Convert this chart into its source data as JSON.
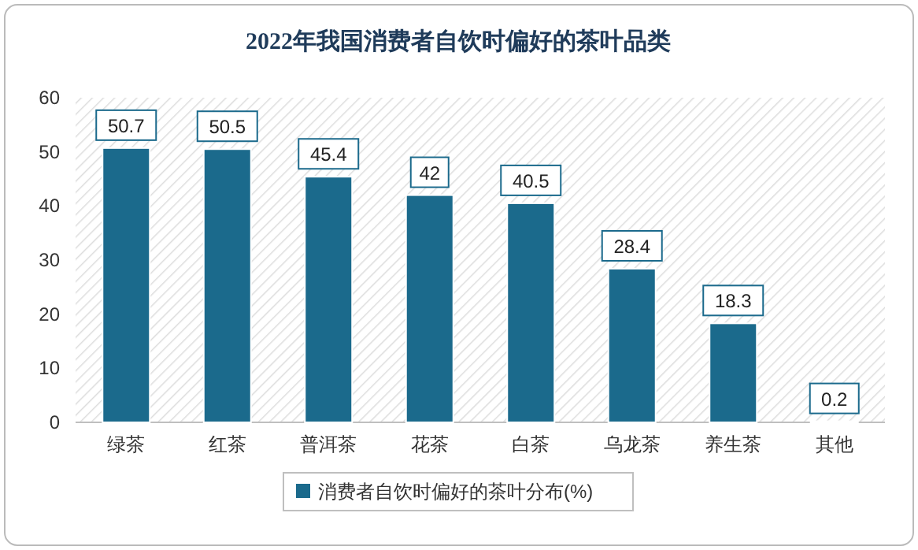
{
  "chart_data": {
    "type": "bar",
    "title": "2022年我国消费者自饮时偏好的茶叶品类",
    "categories": [
      "绿茶",
      "红茶",
      "普洱茶",
      "花茶",
      "白茶",
      "乌龙茶",
      "养生茶",
      "其他"
    ],
    "series": [
      {
        "name": "消费者自饮时偏好的茶叶分布(%)",
        "color": "#1b6a8c",
        "values": [
          50.7,
          50.5,
          45.4,
          42,
          40.5,
          28.4,
          18.3,
          0.2
        ]
      }
    ],
    "ylim": [
      0,
      60
    ],
    "yticks": [
      0,
      10,
      20,
      30,
      40,
      50,
      60
    ],
    "data_labels": true,
    "legend": "bottom"
  }
}
